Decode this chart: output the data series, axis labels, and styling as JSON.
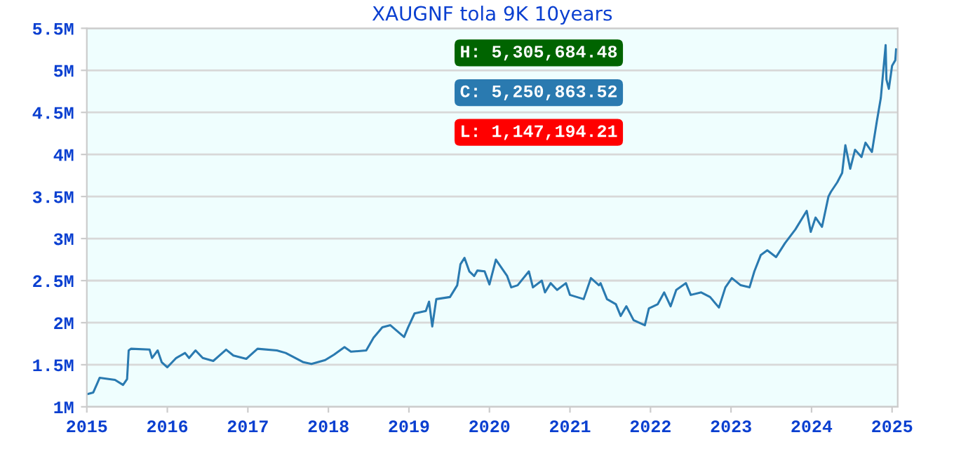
{
  "chart_data": {
    "type": "line",
    "title": "XAUGNF tola 9K 10years",
    "x": [
      2015.0,
      2015.08,
      2015.13,
      2015.16,
      2015.35,
      2015.45,
      2015.5,
      2015.52,
      2015.55,
      2015.78,
      2015.81,
      2015.88,
      2015.93,
      2016.0,
      2016.11,
      2016.22,
      2016.27,
      2016.35,
      2016.44,
      2016.57,
      2016.73,
      2016.82,
      2016.98,
      2017.12,
      2017.36,
      2017.47,
      2017.69,
      2017.79,
      2017.96,
      2018.07,
      2018.2,
      2018.28,
      2018.47,
      2018.56,
      2018.67,
      2018.77,
      2018.94,
      2018.99,
      2019.07,
      2019.21,
      2019.25,
      2019.29,
      2019.34,
      2019.51,
      2019.6,
      2019.64,
      2019.69,
      2019.75,
      2019.81,
      2019.85,
      2019.94,
      2020.0,
      2020.08,
      2020.22,
      2020.27,
      2020.35,
      2020.49,
      2020.54,
      2020.65,
      2020.69,
      2020.76,
      2020.84,
      2020.95,
      2021.0,
      2021.17,
      2021.26,
      2021.36,
      2021.38,
      2021.46,
      2021.57,
      2021.63,
      2021.7,
      2021.79,
      2021.93,
      2021.98,
      2022.09,
      2022.17,
      2022.25,
      2022.32,
      2022.44,
      2022.5,
      2022.63,
      2022.74,
      2022.85,
      2022.93,
      2023.01,
      2023.12,
      2023.23,
      2023.29,
      2023.37,
      2023.45,
      2023.56,
      2023.67,
      2023.8,
      2023.94,
      2023.99,
      2024.05,
      2024.13,
      2024.21,
      2024.24,
      2024.32,
      2024.38,
      2024.42,
      2024.48,
      2024.54,
      2024.62,
      2024.67,
      2024.75,
      2024.81,
      2024.86,
      2024.92,
      2024.93,
      2024.96,
      2025.0,
      2025.04,
      2025.05
    ],
    "series": [
      {
        "color": "#2a7ab0",
        "values": [
          1150000,
          1170000,
          1280000,
          1345000,
          1320000,
          1260000,
          1330000,
          1670000,
          1690000,
          1680000,
          1580000,
          1670000,
          1530000,
          1470000,
          1580000,
          1640000,
          1580000,
          1670000,
          1580000,
          1545000,
          1680000,
          1610000,
          1570000,
          1690000,
          1670000,
          1640000,
          1530000,
          1510000,
          1555000,
          1620000,
          1710000,
          1655000,
          1670000,
          1820000,
          1945000,
          1970000,
          1830000,
          1945000,
          2110000,
          2140000,
          2250000,
          1955000,
          2280000,
          2305000,
          2445000,
          2695000,
          2770000,
          2610000,
          2555000,
          2620000,
          2610000,
          2455000,
          2750000,
          2555000,
          2420000,
          2445000,
          2610000,
          2420000,
          2500000,
          2360000,
          2470000,
          2390000,
          2470000,
          2330000,
          2280000,
          2530000,
          2445000,
          2470000,
          2280000,
          2220000,
          2080000,
          2195000,
          2030000,
          1970000,
          2170000,
          2220000,
          2360000,
          2195000,
          2390000,
          2470000,
          2330000,
          2360000,
          2305000,
          2180000,
          2420000,
          2530000,
          2445000,
          2420000,
          2610000,
          2805000,
          2860000,
          2780000,
          2945000,
          3110000,
          3330000,
          3080000,
          3250000,
          3140000,
          3500000,
          3555000,
          3670000,
          3780000,
          4110000,
          3830000,
          4055000,
          3970000,
          4140000,
          4030000,
          4390000,
          4670000,
          5300000,
          4890000,
          4780000,
          5055000,
          5120000,
          5250000
        ]
      }
    ],
    "annotations": [
      "H: 5,305,684.48",
      "C: 5,250,863.52",
      "L: 1,147,194.21"
    ],
    "xlim": [
      2015,
      2025.07
    ],
    "xticks": [
      2015,
      2016,
      2017,
      2018,
      2019,
      2020,
      2021,
      2022,
      2023,
      2024,
      2025
    ],
    "ylim": [
      1000000,
      5500000
    ],
    "yticks": [
      {
        "value": 1000000,
        "label": "1M"
      },
      {
        "value": 1500000,
        "label": "1.5M"
      },
      {
        "value": 2000000,
        "label": "2M"
      },
      {
        "value": 2500000,
        "label": "2.5M"
      },
      {
        "value": 3000000,
        "label": "3M"
      },
      {
        "value": 3500000,
        "label": "3.5M"
      },
      {
        "value": 4000000,
        "label": "4M"
      },
      {
        "value": 4500000,
        "label": "4.5M"
      },
      {
        "value": 5000000,
        "label": "5M"
      },
      {
        "value": 5500000,
        "label": "5.5M"
      }
    ],
    "grid": "y",
    "marker": "none",
    "line_style": "solid"
  }
}
